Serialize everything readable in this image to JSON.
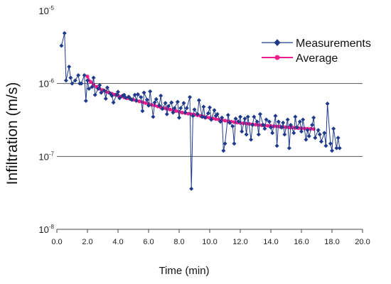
{
  "chart_data": {
    "type": "scatter",
    "xlabel": "Time (min)",
    "ylabel": "Infiltration (m/s)",
    "x_scale": "linear",
    "y_scale": "log",
    "xlim": [
      0,
      20
    ],
    "ylim": [
      1e-08,
      1e-05
    ],
    "x_ticks": [
      "0.0",
      "2.0",
      "4.0",
      "6.0",
      "8.0",
      "10.0",
      "12.0",
      "14.0",
      "16.0",
      "18.0",
      "20.0"
    ],
    "y_ticks": [
      {
        "base": "10",
        "exp": "-5",
        "value": 1e-05
      },
      {
        "base": "10",
        "exp": "-6",
        "value": 1e-06
      },
      {
        "base": "10",
        "exp": "-7",
        "value": 1e-07
      },
      {
        "base": "10",
        "exp": "-8",
        "value": 1e-08
      }
    ],
    "grid": "horizontal",
    "legend_position": "top-right",
    "colors": {
      "measurements": "#1f3a8a",
      "average": "#ec1c8c",
      "grid": "#555555"
    },
    "series": [
      {
        "name": "Measurements",
        "type": "line-with-diamond-markers",
        "x": [
          0.3,
          0.5,
          0.6,
          0.8,
          0.9,
          1.0,
          1.2,
          1.4,
          1.5,
          1.6,
          1.8,
          1.9,
          2.0,
          2.1,
          2.3,
          2.4,
          2.5,
          2.7,
          2.8,
          2.9,
          3.1,
          3.2,
          3.3,
          3.5,
          3.6,
          3.7,
          3.9,
          4.0,
          4.1,
          4.3,
          4.4,
          4.5,
          4.7,
          4.8,
          4.9,
          5.1,
          5.2,
          5.3,
          5.5,
          5.6,
          5.7,
          5.9,
          6.0,
          6.1,
          6.3,
          6.4,
          6.5,
          6.7,
          6.8,
          6.9,
          7.1,
          7.2,
          7.3,
          7.5,
          7.6,
          7.7,
          7.9,
          8.0,
          8.1,
          8.3,
          8.4,
          8.5,
          8.7,
          8.8,
          8.9,
          9.0,
          9.2,
          9.3,
          9.5,
          9.6,
          9.7,
          9.9,
          10.0,
          10.1,
          10.3,
          10.4,
          10.5,
          10.7,
          10.8,
          10.9,
          11.0,
          11.2,
          11.3,
          11.5,
          11.6,
          11.7,
          11.9,
          12.0,
          12.1,
          12.3,
          12.4,
          12.5,
          12.7,
          12.8,
          12.9,
          13.1,
          13.2,
          13.3,
          13.5,
          13.6,
          13.7,
          13.9,
          14.0,
          14.1,
          14.3,
          14.4,
          14.5,
          14.7,
          14.8,
          14.9,
          15.1,
          15.2,
          15.3,
          15.5,
          15.6,
          15.7,
          15.9,
          16.0,
          16.1,
          16.3,
          16.4,
          16.5,
          16.7,
          16.8,
          16.9,
          17.1,
          17.2,
          17.3,
          17.5,
          17.6,
          17.7,
          17.9,
          18.0,
          18.1,
          18.3,
          18.4,
          18.5
        ],
        "y": [
          3.3e-06,
          4.9e-06,
          1.1e-06,
          1.7e-06,
          1.2e-06,
          1e-06,
          1.1e-06,
          1.3e-06,
          1e-06,
          1e-06,
          1.3e-06,
          5.8e-07,
          1.1e-06,
          8.5e-07,
          9e-07,
          1.2e-06,
          7e-07,
          8.5e-07,
          9.5e-07,
          7.5e-07,
          8e-07,
          6.2e-07,
          8.8e-07,
          7.3e-07,
          6.8e-07,
          5.5e-07,
          7e-07,
          7.7e-07,
          6.3e-07,
          6.8e-07,
          7e-07,
          6.4e-07,
          6.6e-07,
          6.2e-07,
          6e-07,
          7e-07,
          5.8e-07,
          7.1e-07,
          6.5e-07,
          4.2e-07,
          7.5e-07,
          6e-07,
          5e-07,
          7.8e-07,
          3.5e-07,
          5.5e-07,
          6.1e-07,
          5e-07,
          6.8e-07,
          4.5e-07,
          5.4e-07,
          3.8e-07,
          4.9e-07,
          5.5e-07,
          4e-07,
          4.6e-07,
          5.6e-07,
          3.4e-07,
          4.6e-07,
          5.4e-07,
          4e-07,
          4.6e-07,
          6.5e-07,
          3.6e-08,
          3.6e-07,
          4.4e-07,
          3.8e-07,
          5.9e-07,
          3.5e-07,
          4.8e-07,
          3.4e-07,
          3.9e-07,
          4.7e-07,
          3.2e-07,
          4.3e-07,
          3.6e-07,
          3.8e-07,
          3e-07,
          3.4e-07,
          1.2e-07,
          1.5e-07,
          3.7e-07,
          2.9e-07,
          2.6e-07,
          1.5e-07,
          3.3e-07,
          3e-07,
          3.5e-07,
          2.2e-07,
          3.3e-07,
          2e-07,
          3.5e-07,
          1.7e-07,
          2.7e-07,
          3.5e-07,
          3e-07,
          2e-07,
          3.8e-07,
          2.7e-07,
          2.4e-07,
          3.2e-07,
          3e-07,
          2.5e-07,
          2.1e-07,
          3.6e-07,
          1.4e-07,
          3e-07,
          2.5e-07,
          2.9e-07,
          2e-07,
          3.2e-07,
          1.3e-07,
          2.7e-07,
          2.1e-07,
          3.5e-07,
          2.5e-07,
          3e-07,
          2.2e-07,
          3.2e-07,
          1.7e-07,
          2.3e-07,
          1.9e-07,
          2.7e-07,
          3.4e-07,
          1.8e-07,
          2.3e-07,
          2e-07,
          1.6e-07,
          2.1e-07,
          1.4e-07,
          5.3e-07,
          1.5e-07,
          1.2e-07,
          2.4e-07,
          1.3e-07,
          1.8e-07,
          1.3e-07
        ]
      },
      {
        "name": "Average",
        "type": "line-with-dot-markers",
        "x": [
          2.0,
          2.2,
          2.4,
          2.6,
          2.8,
          3.0,
          3.2,
          3.4,
          3.6,
          3.8,
          4.0,
          4.2,
          4.4,
          4.6,
          4.8,
          5.0,
          5.2,
          5.4,
          5.6,
          5.8,
          6.0,
          6.2,
          6.4,
          6.6,
          6.8,
          7.0,
          7.2,
          7.4,
          7.6,
          7.8,
          8.0,
          8.2,
          8.4,
          8.6,
          8.8,
          9.0,
          9.2,
          9.4,
          9.6,
          9.8,
          10.0,
          10.2,
          10.4,
          10.6,
          10.8,
          11.0,
          11.2,
          11.4,
          11.6,
          11.8,
          12.0,
          12.2,
          12.4,
          12.6,
          12.8,
          13.0,
          13.2,
          13.4,
          13.6,
          13.8,
          14.0,
          14.2,
          14.4,
          14.6,
          14.8,
          15.0,
          15.2,
          15.4,
          15.6,
          15.8,
          16.0,
          16.2,
          16.4,
          16.6,
          16.8
        ],
        "y": [
          1.25e-06,
          1.06e-06,
          9.7e-07,
          9e-07,
          8.5e-07,
          8.15e-07,
          7.8e-07,
          7.5e-07,
          7.25e-07,
          7.05e-07,
          6.85e-07,
          6.65e-07,
          6.45e-07,
          6.3e-07,
          6.15e-07,
          6e-07,
          5.85e-07,
          5.7e-07,
          5.55e-07,
          5.4e-07,
          5.25e-07,
          5.1e-07,
          5e-07,
          4.85e-07,
          4.7e-07,
          4.6e-07,
          4.5e-07,
          4.4e-07,
          4.3e-07,
          4.2e-07,
          4.1e-07,
          4e-07,
          3.93e-07,
          3.86e-07,
          3.8e-07,
          3.74e-07,
          3.68e-07,
          3.6e-07,
          3.52e-07,
          3.45e-07,
          3.38e-07,
          3.32e-07,
          3.26e-07,
          3.2e-07,
          3.15e-07,
          3.1e-07,
          3.05e-07,
          3e-07,
          2.96e-07,
          2.92e-07,
          2.88e-07,
          2.85e-07,
          2.82e-07,
          2.79e-07,
          2.76e-07,
          2.73e-07,
          2.7e-07,
          2.68e-07,
          2.66e-07,
          2.64e-07,
          2.62e-07,
          2.6e-07,
          2.58e-07,
          2.56e-07,
          2.54e-07,
          2.52e-07,
          2.5e-07,
          2.49e-07,
          2.47e-07,
          2.45e-07,
          2.43e-07,
          2.42e-07,
          2.4e-07,
          2.39e-07,
          2.38e-07
        ]
      }
    ]
  }
}
